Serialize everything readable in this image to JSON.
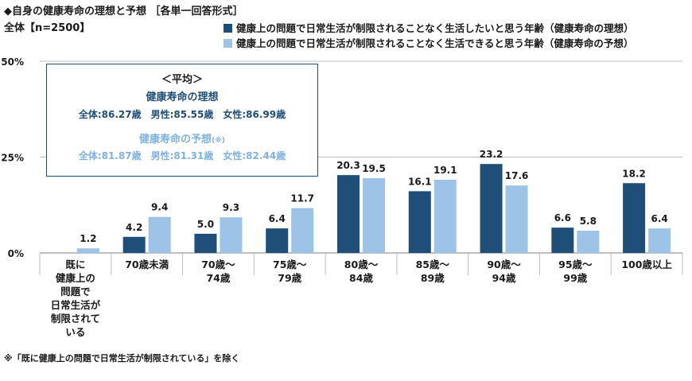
{
  "title": "◆自身の健康寿命の理想と予想 ［各単一回答形式］",
  "subtitle": "全体【n=2500】",
  "note": "※「既に健康上の問題で日常生活が制限されている」を除く",
  "average_box": {
    "heading": "＜平均＞",
    "ideal_title": "健康寿命の理想",
    "ideal_values": "全体:86.27歳　男性:85.55歳　女性:86.99歳",
    "forecast_title": "健康寿命の予想",
    "forecast_mark": "(※)",
    "forecast_values": "全体:81.87歳　男性:81.31歳　女性:82.44歳"
  },
  "colors": {
    "ideal": "#1f4e79",
    "forecast": "#9dc3e6",
    "grid": "#bfbfbf",
    "box_border": "#1f4e79",
    "forecast_text": "#7fb2e0"
  },
  "chart_data": {
    "type": "bar",
    "ylim": [
      0,
      50
    ],
    "yticks": [
      "0%",
      "25%",
      "50%"
    ],
    "ytick_values": [
      0,
      25,
      50
    ],
    "categories": [
      [
        "既に",
        "健康上の",
        "問題で",
        "日常生活が",
        "制限されて",
        "いる"
      ],
      [
        "70歳未満"
      ],
      [
        "70歳～",
        "74歳"
      ],
      [
        "75歳～",
        "79歳"
      ],
      [
        "80歳～",
        "84歳"
      ],
      [
        "85歳～",
        "89歳"
      ],
      [
        "90歳～",
        "94歳"
      ],
      [
        "95歳～",
        "99歳"
      ],
      [
        "100歳以上"
      ]
    ],
    "series": [
      {
        "name": "健康上の問題で日常生活が制限されることなく生活したいと思う年齢（健康寿命の理想）",
        "values": [
          null,
          4.2,
          5.0,
          6.4,
          20.3,
          16.1,
          23.2,
          6.6,
          18.2
        ],
        "labels": [
          "",
          "4.2",
          "5.0",
          "6.4",
          "20.3",
          "16.1",
          "23.2",
          "6.6",
          "18.2"
        ]
      },
      {
        "name": "健康上の問題で日常生活が制限されることなく生活できると思う年齢（健康寿命の予想）",
        "values": [
          1.2,
          9.4,
          9.3,
          11.7,
          19.5,
          19.1,
          17.6,
          5.8,
          6.4
        ],
        "labels": [
          "1.2",
          "9.4",
          "9.3",
          "11.7",
          "19.5",
          "19.1",
          "17.6",
          "5.8",
          "6.4"
        ]
      }
    ]
  }
}
